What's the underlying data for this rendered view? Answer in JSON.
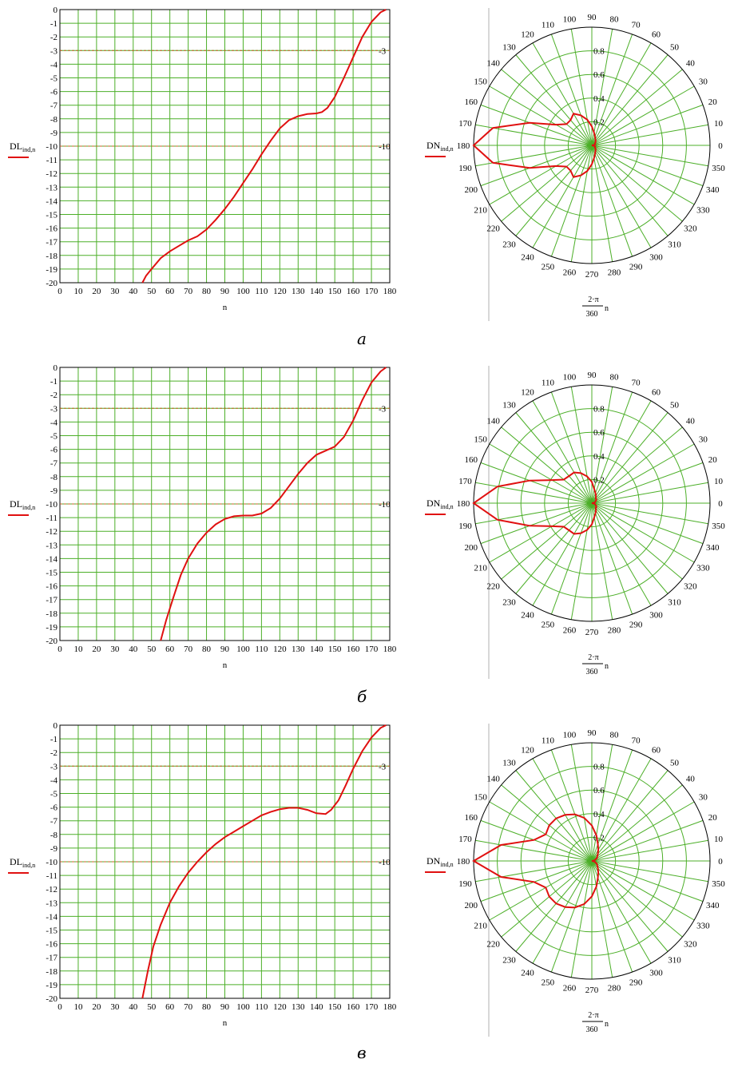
{
  "colors": {
    "grid": "#4caf28",
    "curve": "#e01010",
    "threshold": "#c06020",
    "frame": "#000000"
  },
  "captions": [
    "а",
    "б",
    "в"
  ],
  "chart_data": [
    {
      "type": "line",
      "ylabel_main": "DL",
      "ylabel_sub": "ind,n",
      "xlabel": "n",
      "xlim": [
        0,
        180
      ],
      "ylim": [
        -20,
        0
      ],
      "x_ticks": [
        0,
        10,
        20,
        30,
        40,
        50,
        60,
        70,
        80,
        90,
        100,
        110,
        120,
        130,
        140,
        150,
        160,
        170,
        180
      ],
      "y_ticks": [
        0,
        -1,
        -2,
        -3,
        -4,
        -5,
        -6,
        -7,
        -8,
        -9,
        -10,
        -11,
        -12,
        -13,
        -14,
        -15,
        -16,
        -17,
        -18,
        -19,
        -20
      ],
      "grid": true,
      "thresholds": [
        {
          "value": -3,
          "label": "-3"
        },
        {
          "value": -10,
          "label": "-10"
        }
      ],
      "series": [
        {
          "points": [
            [
              45,
              -20
            ],
            [
              47,
              -19.5
            ],
            [
              50,
              -19
            ],
            [
              55,
              -18.2
            ],
            [
              60,
              -17.7
            ],
            [
              65,
              -17.3
            ],
            [
              70,
              -16.9
            ],
            [
              75,
              -16.6
            ],
            [
              80,
              -16.1
            ],
            [
              85,
              -15.4
            ],
            [
              90,
              -14.6
            ],
            [
              95,
              -13.7
            ],
            [
              100,
              -12.7
            ],
            [
              105,
              -11.7
            ],
            [
              110,
              -10.6
            ],
            [
              115,
              -9.6
            ],
            [
              120,
              -8.7
            ],
            [
              125,
              -8.1
            ],
            [
              130,
              -7.8
            ],
            [
              135,
              -7.65
            ],
            [
              140,
              -7.6
            ],
            [
              143,
              -7.5
            ],
            [
              146,
              -7.2
            ],
            [
              150,
              -6.4
            ],
            [
              155,
              -5
            ],
            [
              160,
              -3.5
            ],
            [
              165,
              -2
            ],
            [
              170,
              -0.9
            ],
            [
              175,
              -0.2
            ],
            [
              178,
              0
            ]
          ]
        }
      ]
    },
    {
      "type": "polar",
      "label_main": "DN",
      "label_sub": "ind,n",
      "xlabel_num": "2·π",
      "xlabel_den": "360",
      "xlabel_var": "n",
      "angle_ticks": [
        0,
        10,
        20,
        30,
        40,
        50,
        60,
        70,
        80,
        90,
        100,
        110,
        120,
        130,
        140,
        150,
        160,
        170,
        180,
        190,
        200,
        210,
        220,
        230,
        240,
        250,
        260,
        270,
        280,
        290,
        300,
        310,
        320,
        330,
        340,
        350
      ],
      "r_ticks": [
        "0.2",
        "0.4",
        "0.6",
        "0.8"
      ],
      "rlim": [
        0,
        1
      ],
      "grid": true,
      "series": [
        {
          "points": [
            [
              0,
              0
            ],
            [
              10,
              0.02
            ],
            [
              20,
              0.03
            ],
            [
              30,
              0.03
            ],
            [
              40,
              0.04
            ],
            [
              50,
              0.05
            ],
            [
              60,
              0.06
            ],
            [
              70,
              0.08
            ],
            [
              80,
              0.11
            ],
            [
              90,
              0.16
            ],
            [
              100,
              0.22
            ],
            [
              110,
              0.27
            ],
            [
              120,
              0.31
            ],
            [
              130,
              0.28
            ],
            [
              140,
              0.28
            ],
            [
              150,
              0.35
            ],
            [
              160,
              0.56
            ],
            [
              170,
              0.85
            ],
            [
              180,
              1.0
            ],
            [
              190,
              0.85
            ],
            [
              200,
              0.56
            ],
            [
              210,
              0.35
            ],
            [
              220,
              0.28
            ],
            [
              230,
              0.28
            ],
            [
              240,
              0.31
            ],
            [
              250,
              0.27
            ],
            [
              260,
              0.22
            ],
            [
              270,
              0.16
            ],
            [
              280,
              0.11
            ],
            [
              290,
              0.08
            ],
            [
              300,
              0.06
            ],
            [
              310,
              0.05
            ],
            [
              320,
              0.04
            ],
            [
              330,
              0.03
            ],
            [
              340,
              0.03
            ],
            [
              350,
              0.02
            ],
            [
              360,
              0
            ]
          ]
        }
      ]
    },
    {
      "type": "line",
      "ylabel_main": "DL",
      "ylabel_sub": "ind,n",
      "xlabel": "n",
      "xlim": [
        0,
        180
      ],
      "ylim": [
        -20,
        0
      ],
      "x_ticks": [
        0,
        10,
        20,
        30,
        40,
        50,
        60,
        70,
        80,
        90,
        100,
        110,
        120,
        130,
        140,
        150,
        160,
        170,
        180
      ],
      "y_ticks": [
        0,
        -1,
        -2,
        -3,
        -4,
        -5,
        -6,
        -7,
        -8,
        -9,
        -10,
        -11,
        -12,
        -13,
        -14,
        -15,
        -16,
        -17,
        -18,
        -19,
        -20
      ],
      "grid": true,
      "thresholds": [
        {
          "value": -3,
          "label": "-3"
        },
        {
          "value": -10,
          "label": "-10"
        }
      ],
      "series": [
        {
          "points": [
            [
              55,
              -20
            ],
            [
              58,
              -18.5
            ],
            [
              62,
              -16.8
            ],
            [
              66,
              -15.2
            ],
            [
              70,
              -14
            ],
            [
              75,
              -12.9
            ],
            [
              80,
              -12.1
            ],
            [
              85,
              -11.5
            ],
            [
              90,
              -11.1
            ],
            [
              95,
              -10.9
            ],
            [
              100,
              -10.85
            ],
            [
              105,
              -10.85
            ],
            [
              110,
              -10.7
            ],
            [
              115,
              -10.3
            ],
            [
              120,
              -9.6
            ],
            [
              125,
              -8.7
            ],
            [
              130,
              -7.8
            ],
            [
              135,
              -7
            ],
            [
              140,
              -6.4
            ],
            [
              145,
              -6.1
            ],
            [
              150,
              -5.8
            ],
            [
              155,
              -5.1
            ],
            [
              160,
              -3.9
            ],
            [
              165,
              -2.4
            ],
            [
              170,
              -1.1
            ],
            [
              175,
              -0.3
            ],
            [
              178,
              0
            ]
          ]
        }
      ]
    },
    {
      "type": "polar",
      "label_main": "DN",
      "label_sub": "ind,n",
      "xlabel_num": "2·π",
      "xlabel_den": "360",
      "xlabel_var": "n",
      "angle_ticks": [
        0,
        10,
        20,
        30,
        40,
        50,
        60,
        70,
        80,
        90,
        100,
        110,
        120,
        130,
        140,
        150,
        160,
        170,
        180,
        190,
        200,
        210,
        220,
        230,
        240,
        250,
        260,
        270,
        280,
        290,
        300,
        310,
        320,
        330,
        340,
        350
      ],
      "r_ticks": [
        "0.2",
        "0.4",
        "0.6",
        "0.8"
      ],
      "rlim": [
        0,
        1
      ],
      "grid": true,
      "series": [
        {
          "points": [
            [
              0,
              0
            ],
            [
              10,
              0.02
            ],
            [
              20,
              0.03
            ],
            [
              30,
              0.04
            ],
            [
              40,
              0.05
            ],
            [
              50,
              0.05
            ],
            [
              60,
              0.07
            ],
            [
              70,
              0.09
            ],
            [
              80,
              0.12
            ],
            [
              90,
              0.18
            ],
            [
              100,
              0.23
            ],
            [
              110,
              0.27
            ],
            [
              120,
              0.3
            ],
            [
              130,
              0.3
            ],
            [
              140,
              0.31
            ],
            [
              150,
              0.39
            ],
            [
              160,
              0.56
            ],
            [
              170,
              0.81
            ],
            [
              180,
              1.0
            ],
            [
              190,
              0.81
            ],
            [
              200,
              0.56
            ],
            [
              210,
              0.39
            ],
            [
              220,
              0.31
            ],
            [
              230,
              0.3
            ],
            [
              240,
              0.3
            ],
            [
              250,
              0.27
            ],
            [
              260,
              0.23
            ],
            [
              270,
              0.18
            ],
            [
              280,
              0.12
            ],
            [
              290,
              0.09
            ],
            [
              300,
              0.07
            ],
            [
              310,
              0.05
            ],
            [
              320,
              0.05
            ],
            [
              330,
              0.04
            ],
            [
              340,
              0.03
            ],
            [
              350,
              0.02
            ],
            [
              360,
              0
            ]
          ]
        }
      ]
    },
    {
      "type": "line",
      "ylabel_main": "DL",
      "ylabel_sub": "ind,n",
      "xlabel": "n",
      "xlim": [
        0,
        180
      ],
      "ylim": [
        -20,
        0
      ],
      "x_ticks": [
        0,
        10,
        20,
        30,
        40,
        50,
        60,
        70,
        80,
        90,
        100,
        110,
        120,
        130,
        140,
        150,
        160,
        170,
        180
      ],
      "y_ticks": [
        0,
        -1,
        -2,
        -3,
        -4,
        -5,
        -6,
        -7,
        -8,
        -9,
        -10,
        -11,
        -12,
        -13,
        -14,
        -15,
        -16,
        -17,
        -18,
        -19,
        -20
      ],
      "grid": true,
      "thresholds": [
        {
          "value": -3,
          "label": "-3"
        },
        {
          "value": -10,
          "label": "-10"
        }
      ],
      "series": [
        {
          "points": [
            [
              45,
              -20
            ],
            [
              48,
              -18
            ],
            [
              51,
              -16.2
            ],
            [
              55,
              -14.6
            ],
            [
              60,
              -13
            ],
            [
              65,
              -11.8
            ],
            [
              70,
              -10.8
            ],
            [
              75,
              -10
            ],
            [
              80,
              -9.3
            ],
            [
              85,
              -8.7
            ],
            [
              90,
              -8.2
            ],
            [
              95,
              -7.8
            ],
            [
              100,
              -7.4
            ],
            [
              105,
              -7
            ],
            [
              110,
              -6.6
            ],
            [
              115,
              -6.35
            ],
            [
              120,
              -6.15
            ],
            [
              125,
              -6.05
            ],
            [
              130,
              -6.05
            ],
            [
              135,
              -6.2
            ],
            [
              140,
              -6.45
            ],
            [
              145,
              -6.5
            ],
            [
              148,
              -6.2
            ],
            [
              152,
              -5.5
            ],
            [
              156,
              -4.4
            ],
            [
              160,
              -3.2
            ],
            [
              165,
              -1.9
            ],
            [
              170,
              -0.9
            ],
            [
              175,
              -0.2
            ],
            [
              178,
              0
            ]
          ]
        }
      ]
    },
    {
      "type": "polar",
      "label_main": "DN",
      "label_sub": "ind,n",
      "xlabel_num": "2·π",
      "xlabel_den": "360",
      "xlabel_var": "n",
      "angle_ticks": [
        0,
        10,
        20,
        30,
        40,
        50,
        60,
        70,
        80,
        90,
        100,
        110,
        120,
        130,
        140,
        150,
        160,
        170,
        180,
        190,
        200,
        210,
        220,
        230,
        240,
        250,
        260,
        270,
        280,
        290,
        300,
        310,
        320,
        330,
        340,
        350
      ],
      "r_ticks": [
        "0.2",
        "0.4",
        "0.6",
        "0.8"
      ],
      "rlim": [
        0,
        1
      ],
      "grid": true,
      "series": [
        {
          "points": [
            [
              0,
              0
            ],
            [
              10,
              0.02
            ],
            [
              20,
              0.03
            ],
            [
              30,
              0.05
            ],
            [
              40,
              0.06
            ],
            [
              50,
              0.08
            ],
            [
              60,
              0.11
            ],
            [
              70,
              0.15
            ],
            [
              80,
              0.22
            ],
            [
              90,
              0.3
            ],
            [
              100,
              0.37
            ],
            [
              110,
              0.42
            ],
            [
              120,
              0.45
            ],
            [
              130,
              0.47
            ],
            [
              140,
              0.47
            ],
            [
              150,
              0.45
            ],
            [
              160,
              0.52
            ],
            [
              170,
              0.78
            ],
            [
              180,
              1.0
            ],
            [
              190,
              0.78
            ],
            [
              200,
              0.52
            ],
            [
              210,
              0.45
            ],
            [
              220,
              0.47
            ],
            [
              230,
              0.47
            ],
            [
              240,
              0.45
            ],
            [
              250,
              0.42
            ],
            [
              260,
              0.37
            ],
            [
              270,
              0.3
            ],
            [
              280,
              0.22
            ],
            [
              290,
              0.15
            ],
            [
              300,
              0.11
            ],
            [
              310,
              0.08
            ],
            [
              320,
              0.06
            ],
            [
              330,
              0.05
            ],
            [
              340,
              0.03
            ],
            [
              350,
              0.02
            ],
            [
              360,
              0
            ]
          ]
        }
      ]
    }
  ]
}
